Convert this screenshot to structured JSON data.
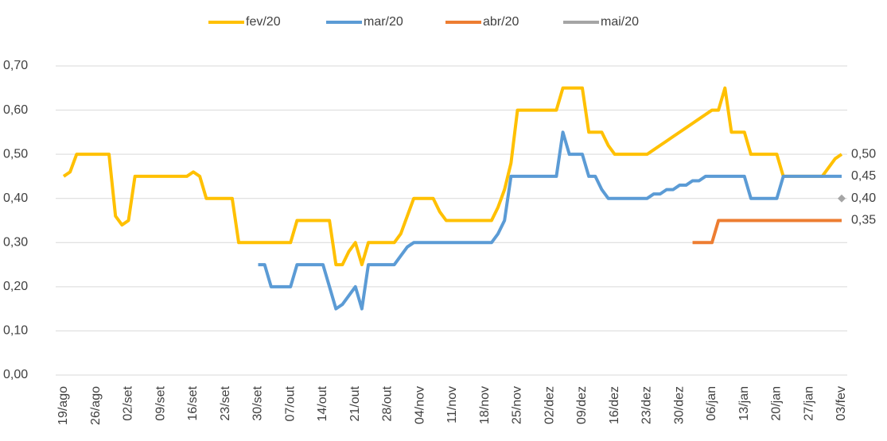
{
  "chart_data": {
    "type": "line",
    "categories": [
      "19/ago",
      null,
      null,
      null,
      null,
      "26/ago",
      null,
      null,
      null,
      null,
      "02/set",
      null,
      null,
      null,
      null,
      "09/set",
      null,
      null,
      null,
      null,
      "16/set",
      null,
      null,
      null,
      null,
      "23/set",
      null,
      null,
      null,
      null,
      "30/set",
      null,
      null,
      null,
      null,
      "07/out",
      null,
      null,
      null,
      null,
      "14/out",
      null,
      null,
      null,
      null,
      "21/out",
      null,
      null,
      null,
      null,
      "28/out",
      null,
      null,
      null,
      null,
      "04/nov",
      null,
      null,
      null,
      null,
      "11/nov",
      null,
      null,
      null,
      null,
      "18/nov",
      null,
      null,
      null,
      null,
      "25/nov",
      null,
      null,
      null,
      null,
      "02/dez",
      null,
      null,
      null,
      null,
      "09/dez",
      null,
      null,
      null,
      null,
      "16/dez",
      null,
      null,
      null,
      null,
      "23/dez",
      null,
      null,
      null,
      null,
      "30/dez",
      null,
      null,
      null,
      null,
      "06/jan",
      null,
      null,
      null,
      null,
      "13/jan",
      null,
      null,
      null,
      null,
      "20/jan",
      null,
      null,
      null,
      null,
      "27/jan",
      null,
      null,
      null,
      null,
      "03/fev"
    ],
    "series": [
      {
        "name": "fev/20",
        "color": "#ffc000",
        "values": [
          0.45,
          0.46,
          0.5,
          0.5,
          0.5,
          0.5,
          0.5,
          0.5,
          0.36,
          0.34,
          0.35,
          0.45,
          0.45,
          0.45,
          0.45,
          0.45,
          0.45,
          0.45,
          0.45,
          0.45,
          0.46,
          0.45,
          0.4,
          0.4,
          0.4,
          0.4,
          0.4,
          0.3,
          0.3,
          0.3,
          0.3,
          0.3,
          0.3,
          0.3,
          0.3,
          0.3,
          0.35,
          0.35,
          0.35,
          0.35,
          0.35,
          0.35,
          0.25,
          0.25,
          0.28,
          0.3,
          0.25,
          0.3,
          0.3,
          0.3,
          0.3,
          0.3,
          0.32,
          0.36,
          0.4,
          0.4,
          0.4,
          0.4,
          0.37,
          0.35,
          0.35,
          0.35,
          0.35,
          0.35,
          0.35,
          0.35,
          0.35,
          0.38,
          0.42,
          0.48,
          0.6,
          0.6,
          0.6,
          0.6,
          0.6,
          0.6,
          0.6,
          0.65,
          0.65,
          0.65,
          0.65,
          0.55,
          0.55,
          0.55,
          0.52,
          0.5,
          0.5,
          0.5,
          0.5,
          0.5,
          0.5,
          0.51,
          0.52,
          0.53,
          0.54,
          0.55,
          0.56,
          0.57,
          0.58,
          0.59,
          0.6,
          0.6,
          0.65,
          0.55,
          0.55,
          0.55,
          0.5,
          0.5,
          0.5,
          0.5,
          0.5,
          0.45,
          0.45,
          0.45,
          0.45,
          0.45,
          0.45,
          0.45,
          0.47,
          0.49,
          0.5
        ],
        "value_labels": [
          null,
          null,
          null,
          null,
          null,
          null,
          null,
          null,
          null,
          null,
          null,
          null,
          null,
          null,
          null,
          null,
          null,
          null,
          null,
          null,
          null,
          null,
          null,
          null,
          null,
          null,
          null,
          null,
          null,
          null,
          null,
          null,
          null,
          null,
          null,
          null,
          null,
          null,
          null,
          null,
          null,
          null,
          null,
          null,
          null,
          null,
          null,
          null,
          null,
          null,
          null,
          null,
          null,
          null,
          null,
          null,
          null,
          null,
          null,
          null,
          null,
          null,
          null,
          null,
          null,
          null,
          null,
          null,
          null,
          null,
          null,
          null,
          null,
          null,
          null,
          null,
          null,
          null,
          null,
          null,
          null,
          null,
          null,
          null,
          null,
          null,
          null,
          null,
          null,
          null,
          null,
          null,
          null,
          null,
          null,
          null,
          null,
          null,
          null,
          null,
          null,
          null,
          null,
          null,
          null,
          null,
          null,
          null,
          null,
          null,
          null,
          null,
          null,
          null,
          null,
          null,
          null,
          null,
          null,
          null,
          "0,50"
        ]
      },
      {
        "name": "mar/20",
        "color": "#5b9bd5",
        "values": [
          null,
          null,
          null,
          null,
          null,
          null,
          null,
          null,
          null,
          null,
          null,
          null,
          null,
          null,
          null,
          null,
          null,
          null,
          null,
          null,
          null,
          null,
          null,
          null,
          null,
          null,
          null,
          null,
          null,
          null,
          0.25,
          0.25,
          0.2,
          0.2,
          0.2,
          0.2,
          0.25,
          0.25,
          0.25,
          0.25,
          0.25,
          0.2,
          0.15,
          0.16,
          0.18,
          0.2,
          0.15,
          0.25,
          0.25,
          0.25,
          0.25,
          0.25,
          0.27,
          0.29,
          0.3,
          0.3,
          0.3,
          0.3,
          0.3,
          0.3,
          0.3,
          0.3,
          0.3,
          0.3,
          0.3,
          0.3,
          0.3,
          0.32,
          0.35,
          0.45,
          0.45,
          0.45,
          0.45,
          0.45,
          0.45,
          0.45,
          0.45,
          0.55,
          0.5,
          0.5,
          0.5,
          0.45,
          0.45,
          0.42,
          0.4,
          0.4,
          0.4,
          0.4,
          0.4,
          0.4,
          0.4,
          0.41,
          0.41,
          0.42,
          0.42,
          0.43,
          0.43,
          0.44,
          0.44,
          0.45,
          0.45,
          0.45,
          0.45,
          0.45,
          0.45,
          0.45,
          0.4,
          0.4,
          0.4,
          0.4,
          0.4,
          0.45,
          0.45,
          0.45,
          0.45,
          0.45,
          0.45,
          0.45,
          0.45,
          0.45,
          0.45
        ],
        "value_labels": [
          null,
          null,
          null,
          null,
          null,
          null,
          null,
          null,
          null,
          null,
          null,
          null,
          null,
          null,
          null,
          null,
          null,
          null,
          null,
          null,
          null,
          null,
          null,
          null,
          null,
          null,
          null,
          null,
          null,
          null,
          null,
          null,
          null,
          null,
          null,
          null,
          null,
          null,
          null,
          null,
          null,
          null,
          null,
          null,
          null,
          null,
          null,
          null,
          null,
          null,
          null,
          null,
          null,
          null,
          null,
          null,
          null,
          null,
          null,
          null,
          null,
          null,
          null,
          null,
          null,
          null,
          null,
          null,
          null,
          null,
          null,
          null,
          null,
          null,
          null,
          null,
          null,
          null,
          null,
          null,
          null,
          null,
          null,
          null,
          null,
          null,
          null,
          null,
          null,
          null,
          null,
          null,
          null,
          null,
          null,
          null,
          null,
          null,
          null,
          null,
          null,
          null,
          null,
          null,
          null,
          null,
          null,
          null,
          null,
          null,
          null,
          null,
          null,
          null,
          null,
          null,
          null,
          null,
          null,
          null,
          "0,45"
        ]
      },
      {
        "name": "abr/20",
        "color": "#ed7d31",
        "values": [
          null,
          null,
          null,
          null,
          null,
          null,
          null,
          null,
          null,
          null,
          null,
          null,
          null,
          null,
          null,
          null,
          null,
          null,
          null,
          null,
          null,
          null,
          null,
          null,
          null,
          null,
          null,
          null,
          null,
          null,
          null,
          null,
          null,
          null,
          null,
          null,
          null,
          null,
          null,
          null,
          null,
          null,
          null,
          null,
          null,
          null,
          null,
          null,
          null,
          null,
          null,
          null,
          null,
          null,
          null,
          null,
          null,
          null,
          null,
          null,
          null,
          null,
          null,
          null,
          null,
          null,
          null,
          null,
          null,
          null,
          null,
          null,
          null,
          null,
          null,
          null,
          null,
          null,
          null,
          null,
          null,
          null,
          null,
          null,
          null,
          null,
          null,
          null,
          null,
          null,
          null,
          null,
          null,
          null,
          null,
          null,
          null,
          0.3,
          0.3,
          0.3,
          0.3,
          0.35,
          0.35,
          0.35,
          0.35,
          0.35,
          0.35,
          0.35,
          0.35,
          0.35,
          0.35,
          0.35,
          0.35,
          0.35,
          0.35,
          0.35,
          0.35,
          0.35,
          0.35,
          0.35,
          0.35
        ],
        "value_labels": [
          null,
          null,
          null,
          null,
          null,
          null,
          null,
          null,
          null,
          null,
          null,
          null,
          null,
          null,
          null,
          null,
          null,
          null,
          null,
          null,
          null,
          null,
          null,
          null,
          null,
          null,
          null,
          null,
          null,
          null,
          null,
          null,
          null,
          null,
          null,
          null,
          null,
          null,
          null,
          null,
          null,
          null,
          null,
          null,
          null,
          null,
          null,
          null,
          null,
          null,
          null,
          null,
          null,
          null,
          null,
          null,
          null,
          null,
          null,
          null,
          null,
          null,
          null,
          null,
          null,
          null,
          null,
          null,
          null,
          null,
          null,
          null,
          null,
          null,
          null,
          null,
          null,
          null,
          null,
          null,
          null,
          null,
          null,
          null,
          null,
          null,
          null,
          null,
          null,
          null,
          null,
          null,
          null,
          null,
          null,
          null,
          null,
          null,
          null,
          null,
          null,
          null,
          null,
          null,
          null,
          null,
          null,
          null,
          null,
          null,
          null,
          null,
          null,
          null,
          null,
          null,
          null,
          null,
          null,
          null,
          "0,35"
        ]
      },
      {
        "name": "mai/20",
        "color": "#a5a5a5",
        "values": [
          null,
          null,
          null,
          null,
          null,
          null,
          null,
          null,
          null,
          null,
          null,
          null,
          null,
          null,
          null,
          null,
          null,
          null,
          null,
          null,
          null,
          null,
          null,
          null,
          null,
          null,
          null,
          null,
          null,
          null,
          null,
          null,
          null,
          null,
          null,
          null,
          null,
          null,
          null,
          null,
          null,
          null,
          null,
          null,
          null,
          null,
          null,
          null,
          null,
          null,
          null,
          null,
          null,
          null,
          null,
          null,
          null,
          null,
          null,
          null,
          null,
          null,
          null,
          null,
          null,
          null,
          null,
          null,
          null,
          null,
          null,
          null,
          null,
          null,
          null,
          null,
          null,
          null,
          null,
          null,
          null,
          null,
          null,
          null,
          null,
          null,
          null,
          null,
          null,
          null,
          null,
          null,
          null,
          null,
          null,
          null,
          null,
          null,
          null,
          null,
          null,
          null,
          null,
          null,
          null,
          null,
          null,
          null,
          null,
          null,
          null,
          null,
          null,
          null,
          null,
          null,
          null,
          null,
          null,
          null,
          0.4
        ],
        "value_labels": [
          null,
          null,
          null,
          null,
          null,
          null,
          null,
          null,
          null,
          null,
          null,
          null,
          null,
          null,
          null,
          null,
          null,
          null,
          null,
          null,
          null,
          null,
          null,
          null,
          null,
          null,
          null,
          null,
          null,
          null,
          null,
          null,
          null,
          null,
          null,
          null,
          null,
          null,
          null,
          null,
          null,
          null,
          null,
          null,
          null,
          null,
          null,
          null,
          null,
          null,
          null,
          null,
          null,
          null,
          null,
          null,
          null,
          null,
          null,
          null,
          null,
          null,
          null,
          null,
          null,
          null,
          null,
          null,
          null,
          null,
          null,
          null,
          null,
          null,
          null,
          null,
          null,
          null,
          null,
          null,
          null,
          null,
          null,
          null,
          null,
          null,
          null,
          null,
          null,
          null,
          null,
          null,
          null,
          null,
          null,
          null,
          null,
          null,
          null,
          null,
          null,
          null,
          null,
          null,
          null,
          null,
          null,
          null,
          null,
          null,
          null,
          null,
          null,
          null,
          null,
          null,
          null,
          null,
          null,
          null,
          "0,40"
        ]
      }
    ],
    "ylim": [
      0,
      0.7
    ],
    "yticks": [
      {
        "value": 0,
        "label": "0,00"
      },
      {
        "value": 0.1,
        "label": "0,10"
      },
      {
        "value": 0.2,
        "label": "0,20"
      },
      {
        "value": 0.3,
        "label": "0,30"
      },
      {
        "value": 0.4,
        "label": "0,40"
      },
      {
        "value": 0.5,
        "label": "0,50"
      },
      {
        "value": 0.6,
        "label": "0,60"
      },
      {
        "value": 0.7,
        "label": "0,70"
      }
    ],
    "grid": true,
    "legend": "top"
  }
}
